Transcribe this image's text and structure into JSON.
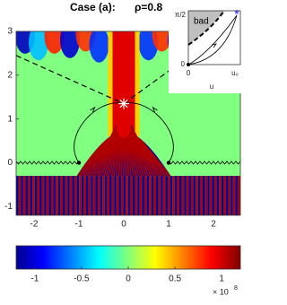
{
  "chart_data": {
    "type": "heatmap",
    "title": "Case (a):",
    "parameter": "ρ=0.8",
    "xlim": [
      -2.4,
      2.6
    ],
    "ylim": [
      -1.2,
      3
    ],
    "xticks": [
      -2,
      -1,
      0,
      1,
      2
    ],
    "yticks": [
      -1,
      0,
      1,
      2,
      3
    ],
    "star": {
      "x": 0,
      "y": 1.35
    },
    "points": {
      "x": [
        -1,
        1
      ],
      "y": [
        0,
        0
      ]
    },
    "colorbar": {
      "lim": [
        -1.2,
        1.2
      ],
      "ticks": [
        -1,
        -0.5,
        0,
        0.5,
        1
      ],
      "scale_base": "× 10",
      "scale_exponent": "8"
    },
    "inset": {
      "y_top": "π/2",
      "y_bottom": "0",
      "x_left": "0",
      "x_right": "u₀",
      "x_label": "u",
      "region": "bad"
    }
  }
}
